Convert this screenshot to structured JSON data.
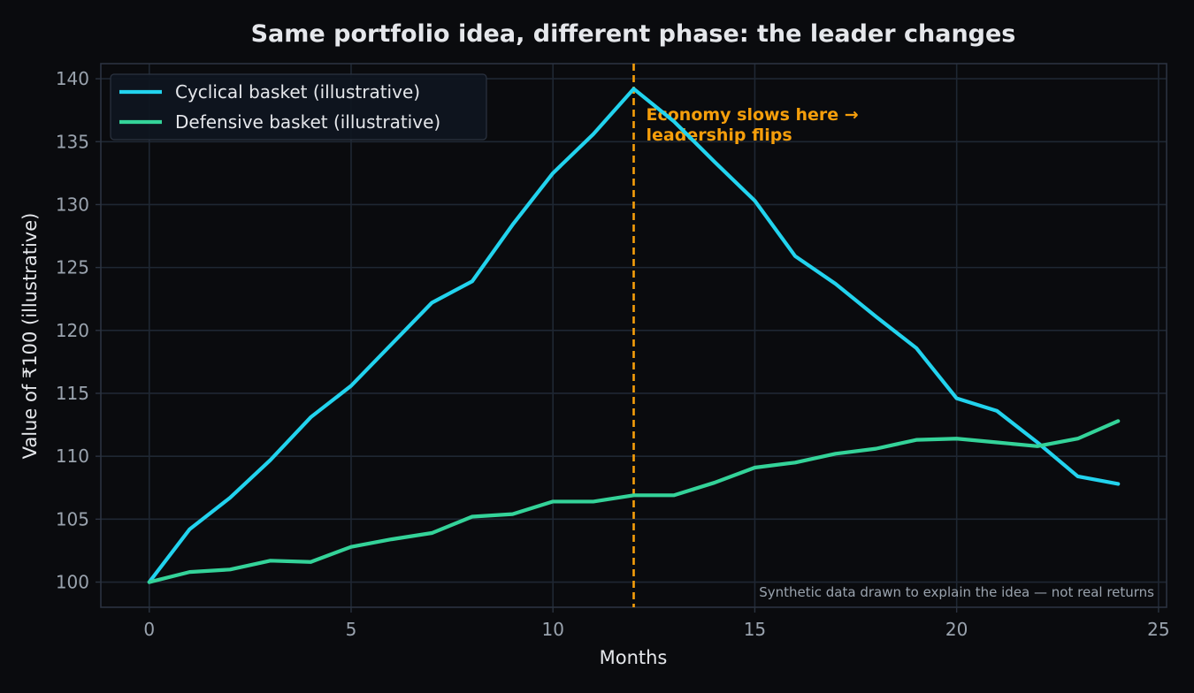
{
  "chart_data": {
    "type": "line",
    "title": "Same portfolio idea, different phase: the leader changes",
    "xlabel": "Months",
    "ylabel": "Value of ₹100 (illustrative)",
    "xlim": [
      -1.2,
      25.2
    ],
    "ylim": [
      98,
      141.2
    ],
    "x_ticks": [
      0,
      5,
      10,
      15,
      20,
      25
    ],
    "y_ticks": [
      100,
      105,
      110,
      115,
      120,
      125,
      130,
      135,
      140
    ],
    "grid": true,
    "legend_position": "top-left",
    "x": [
      0,
      1,
      2,
      3,
      4,
      5,
      6,
      7,
      8,
      9,
      10,
      11,
      12,
      13,
      14,
      15,
      16,
      17,
      18,
      19,
      20,
      21,
      22,
      23,
      24
    ],
    "series": [
      {
        "name": "Cyclical basket (illustrative)",
        "color": "#22d3ee",
        "values": [
          100,
          104.2,
          106.7,
          109.7,
          113.1,
          115.6,
          118.9,
          122.2,
          123.9,
          128.4,
          132.5,
          135.6,
          139.2,
          136.6,
          133.4,
          130.3,
          125.9,
          123.7,
          121.1,
          118.6,
          114.6,
          113.6,
          111.1,
          108.4,
          107.8
        ]
      },
      {
        "name": "Defensive basket (illustrative)",
        "color": "#34d399",
        "values": [
          100,
          100.8,
          101.0,
          101.7,
          101.6,
          102.8,
          103.4,
          103.9,
          105.2,
          105.4,
          106.4,
          106.4,
          106.9,
          106.9,
          107.9,
          109.1,
          109.5,
          110.2,
          110.6,
          111.3,
          111.4,
          111.1,
          110.8,
          111.4,
          112.8
        ]
      }
    ],
    "annotations": [
      {
        "kind": "vline",
        "x": 12,
        "color": "#f59e0b",
        "lines": [
          "Economy slows here →",
          "leadership flips"
        ]
      }
    ],
    "footnote": "Synthetic data drawn to explain the idea — not real returns"
  },
  "colors": {
    "background": "#0a0b0e",
    "plot_border": "#2b3340",
    "grid": "#1f2733",
    "tick_text": "#9aa3ae",
    "label_text": "#e5e7eb",
    "legend_bg": "#0f1520",
    "annotation": "#f59e0b",
    "footnote": "#9aa3ae"
  }
}
